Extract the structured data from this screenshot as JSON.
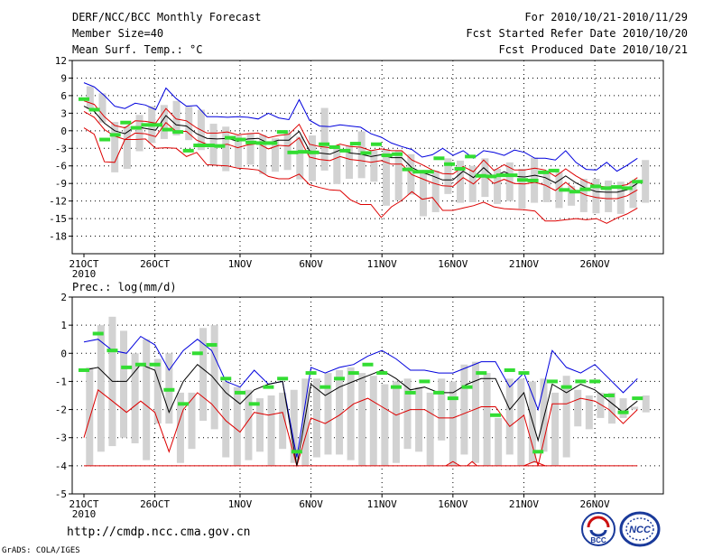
{
  "header": {
    "title": "DERF/NCC/BCC Monthly Forecast",
    "member_size": "Member Size=40",
    "variable": "Mean Surf. Temp.: °C",
    "forecast_period": "For 2010/10/21-2010/11/29",
    "started_refer": "Fcst Started Refer Date 2010/10/20",
    "produced": "Fcst Produced Date 2010/10/21"
  },
  "footer": {
    "url": "http://cmdp.ncc.cma.gov.cn",
    "credit": "GrADS: COLA/IGES"
  },
  "logos": {
    "bcc": "BCC",
    "ncc": "NCC"
  },
  "colors": {
    "box": "#d2d2d2",
    "green": "#33dd33",
    "upper": "#0000dd",
    "lower": "#dd0000",
    "mean": "#000000",
    "grid": "#000000"
  },
  "chart_data": [
    {
      "type": "line",
      "title": "Mean Surf. Temp.: °C",
      "x_tick_labels": [
        "21OCT",
        "26OCT",
        "1NOV",
        "6NOV",
        "11NOV",
        "16NOV",
        "21NOV",
        "26NOV"
      ],
      "x_tick_days": [
        1,
        6,
        12,
        17,
        22,
        27,
        32,
        37
      ],
      "x_year_label": "2010",
      "days": 40,
      "ylim": [
        -21,
        12
      ],
      "yticks": [
        12,
        9,
        6,
        3,
        0,
        -3,
        -6,
        -9,
        -12,
        -15,
        -18
      ],
      "grid": true,
      "series": [
        {
          "name": "upper",
          "values": [
            8.2,
            7.5,
            6.0,
            4.2,
            3.8,
            4.7,
            4.4,
            3.6,
            7.3,
            5.5,
            4.2,
            4.3,
            2.4,
            2.4,
            2.3,
            2.4,
            2.3,
            2.0,
            3.0,
            2.2,
            1.9,
            5.3,
            1.8,
            0.8,
            0.7,
            1.0,
            0.8,
            0.6,
            -0.5,
            -1.1,
            -2.1,
            -2.7,
            -3.2,
            -4.5,
            -4.1,
            -3.0,
            -4.2,
            -3.4,
            -4.7,
            -3.4,
            -3.7,
            -4.2,
            -3.3,
            -3.7,
            -4.7,
            -4.7,
            -5.0,
            -3.4,
            -5.4,
            -6.6,
            -6.7,
            -5.4,
            -6.9,
            -5.9,
            -4.7
          ]
        },
        {
          "name": "mean_high",
          "values": [
            5.1,
            4.5,
            2.4,
            0.9,
            0.5,
            1.7,
            1.6,
            1.3,
            3.8,
            2.0,
            1.7,
            0.5,
            -0.4,
            -0.4,
            -0.2,
            -0.7,
            -0.5,
            -0.4,
            -1.2,
            -0.8,
            -0.6,
            1.1,
            -2.3,
            -2.7,
            -2.9,
            -2.3,
            -2.7,
            -2.8,
            -3.4,
            -3.1,
            -3.4,
            -3.4,
            -5.0,
            -5.8,
            -6.7,
            -7.3,
            -7.4,
            -6.1,
            -7.0,
            -5.0,
            -6.8,
            -5.8,
            -6.7,
            -6.7,
            -6.4,
            -6.7,
            -7.8,
            -6.5,
            -7.7,
            -8.7,
            -9.4,
            -9.6,
            -9.5,
            -9.2,
            -8.0
          ]
        },
        {
          "name": "mean",
          "values": [
            4.2,
            3.3,
            1.3,
            0.0,
            -0.5,
            0.7,
            0.4,
            0.1,
            2.6,
            1.0,
            0.8,
            -0.5,
            -1.3,
            -1.4,
            -1.3,
            -1.8,
            -1.4,
            -1.3,
            -2.1,
            -1.6,
            -1.6,
            -0.1,
            -3.4,
            -3.8,
            -4.0,
            -3.3,
            -3.8,
            -4.0,
            -4.4,
            -4.1,
            -4.6,
            -4.6,
            -6.3,
            -7.1,
            -7.7,
            -8.4,
            -8.4,
            -6.9,
            -8.0,
            -6.3,
            -7.9,
            -7.0,
            -7.8,
            -7.9,
            -7.6,
            -8.0,
            -8.9,
            -7.7,
            -8.9,
            -9.8,
            -10.4,
            -10.5,
            -10.5,
            -10.1,
            -9.0
          ]
        },
        {
          "name": "mean_low",
          "values": [
            3.3,
            2.3,
            0.2,
            -0.9,
            -1.5,
            -0.4,
            -0.5,
            -1.0,
            1.4,
            -0.1,
            -0.1,
            -1.6,
            -2.3,
            -2.5,
            -2.3,
            -2.9,
            -2.4,
            -2.2,
            -3.1,
            -2.5,
            -2.6,
            -1.2,
            -4.5,
            -4.9,
            -5.1,
            -4.4,
            -4.9,
            -5.1,
            -5.4,
            -5.1,
            -5.7,
            -5.7,
            -7.5,
            -8.2,
            -8.9,
            -9.4,
            -9.5,
            -8.0,
            -9.1,
            -7.5,
            -9.0,
            -8.3,
            -9.0,
            -9.1,
            -8.8,
            -9.3,
            -10.2,
            -8.8,
            -10.2,
            -11.0,
            -11.4,
            -11.6,
            -11.6,
            -11.1,
            -10.1
          ]
        },
        {
          "name": "lower",
          "values": [
            0.5,
            -0.6,
            -5.3,
            -5.4,
            -1.5,
            -1.5,
            -1.4,
            -3.0,
            -2.9,
            -3.0,
            -4.4,
            -3.7,
            -5.8,
            -5.9,
            -6.0,
            -6.4,
            -6.5,
            -6.7,
            -7.8,
            -8.2,
            -8.2,
            -7.4,
            -9.2,
            -9.7,
            -10.1,
            -10.2,
            -11.8,
            -12.6,
            -12.6,
            -14.8,
            -13.0,
            -11.9,
            -10.4,
            -11.7,
            -11.4,
            -13.6,
            -13.6,
            -13.2,
            -12.8,
            -12.2,
            -13.0,
            -13.3,
            -13.4,
            -13.5,
            -13.7,
            -15.4,
            -15.4,
            -15.2,
            -15.0,
            -15.2,
            -15.0,
            -15.8,
            -14.9,
            -14.2,
            -13.2
          ]
        },
        {
          "name": "box_top",
          "values": [
            7.6,
            6.4,
            1.5,
            0.8,
            2.7,
            4.2,
            4.4,
            5.1,
            4.1,
            3.6,
            1.2,
            0.7,
            -0.8,
            -0.4,
            -0.7,
            -1.3,
            -0.1,
            -1.0,
            -0.8,
            3.9,
            -2.5,
            -2.5,
            -0.1,
            -3.4,
            -3.1,
            -3.4,
            -4.0,
            -6.7,
            -6.8,
            -4.7,
            -5.1,
            -6.0,
            -4.7,
            -6.5,
            -5.4,
            -6.5,
            -4.6,
            -6.9,
            -7.1,
            -9.4,
            -8.2,
            -8.2,
            -8.5,
            -8.7,
            -8.5,
            -5.0
          ]
        },
        {
          "name": "box_bottom",
          "values": [
            3.7,
            1.4,
            -7.1,
            -6.5,
            -3.5,
            -2.1,
            -1.4,
            -0.8,
            -1.6,
            -3.3,
            -5.8,
            -6.9,
            -6.3,
            -5.8,
            -7.4,
            -7.0,
            -6.7,
            -8.3,
            -8.6,
            -6.8,
            -9.1,
            -8.2,
            -8.1,
            -8.7,
            -12.8,
            -11.9,
            -10.9,
            -14.6,
            -13.9,
            -10.8,
            -12.3,
            -12.2,
            -11.3,
            -12.5,
            -12.0,
            -13.3,
            -12.3,
            -12.2,
            -13.2,
            -12.8,
            -13.9,
            -14.1,
            -13.9,
            -14.2,
            -13.2,
            -12.3
          ]
        },
        {
          "name": "green_marker",
          "values": [
            5.4,
            3.6,
            -1.5,
            -0.7,
            1.4,
            0.5,
            1.0,
            1.0,
            0.2,
            -0.2,
            -3.4,
            -2.5,
            -2.5,
            -2.6,
            -1.2,
            -1.5,
            -2.0,
            -2.1,
            -2.1,
            -0.2,
            -3.7,
            -3.6,
            -3.7,
            -2.3,
            -2.8,
            -3.4,
            -2.2,
            -3.8,
            -2.3,
            -4.2,
            -4.0,
            -6.6,
            -7.0,
            -7.0,
            -4.7,
            -5.7,
            -6.5,
            -4.4,
            -7.7,
            -7.8,
            -7.6,
            -7.6,
            -8.4,
            -8.5,
            -7.1,
            -6.8,
            -10.1,
            -10.4,
            -10.0,
            -9.5,
            -9.8,
            -9.6,
            -9.8,
            -8.7
          ]
        }
      ]
    },
    {
      "type": "line",
      "title": "Prec.: log(mm/d)",
      "x_tick_labels": [
        "21OCT",
        "26OCT",
        "1NOV",
        "6NOV",
        "11NOV",
        "16NOV",
        "21NOV",
        "26NOV"
      ],
      "x_tick_days": [
        1,
        6,
        12,
        17,
        22,
        27,
        32,
        37
      ],
      "x_year_label": "2010",
      "days": 40,
      "ylim": [
        -5,
        2
      ],
      "yticks": [
        2,
        1,
        0,
        -1,
        -2,
        -3,
        -4,
        -5
      ],
      "grid": true,
      "series": [
        {
          "name": "upper",
          "values": [
            0.4,
            0.5,
            0.1,
            0.0,
            0.6,
            0.3,
            -0.6,
            0.1,
            0.5,
            0.1,
            -1.0,
            -1.2,
            -0.6,
            -1.1,
            -1.0,
            -3.7,
            -0.5,
            -0.7,
            -0.5,
            -0.4,
            -0.1,
            0.1,
            -0.2,
            -0.6,
            -0.6,
            -0.7,
            -0.7,
            -0.5,
            -0.3,
            -0.3,
            -1.2,
            -0.7,
            -2.0,
            0.1,
            -0.5,
            -0.7,
            -0.4,
            -0.9,
            -1.4,
            -0.9
          ]
        },
        {
          "name": "mean",
          "values": [
            -0.6,
            -0.5,
            -1.0,
            -1.0,
            -0.4,
            -0.6,
            -2.1,
            -1.0,
            -0.4,
            -0.8,
            -1.4,
            -1.8,
            -1.3,
            -1.1,
            -1.0,
            -4.0,
            -1.1,
            -1.5,
            -1.2,
            -1.0,
            -0.8,
            -0.6,
            -0.9,
            -1.3,
            -1.2,
            -1.4,
            -1.4,
            -1.1,
            -0.9,
            -0.9,
            -2.0,
            -1.4,
            -3.1,
            -1.1,
            -1.4,
            -1.1,
            -1.3,
            -1.7,
            -2.1,
            -1.7
          ]
        },
        {
          "name": "lower",
          "values": [
            -3.0,
            -1.3,
            -1.7,
            -2.1,
            -1.7,
            -2.1,
            -3.5,
            -2.0,
            -1.4,
            -1.8,
            -2.4,
            -2.8,
            -2.1,
            -2.2,
            -2.1,
            -4.0,
            -2.3,
            -2.5,
            -2.2,
            -1.8,
            -1.6,
            -1.9,
            -2.2,
            -2.0,
            -2.0,
            -2.3,
            -2.3,
            -2.1,
            -1.9,
            -1.9,
            -2.6,
            -2.2,
            -4.0,
            -1.8,
            -1.8,
            -1.6,
            -1.7,
            -2.0,
            -2.5,
            -2.0
          ]
        },
        {
          "name": "box_top",
          "values": [
            -0.5,
            1.0,
            1.3,
            0.8,
            0.0,
            0.5,
            -0.2,
            0.0,
            -1.4,
            -1.4,
            0.9,
            1.0,
            -1.0,
            -1.2,
            -1.3,
            -1.6,
            -1.5,
            -1.4,
            -1.3,
            -0.9,
            -0.9,
            -0.7,
            -0.6,
            -0.5,
            -0.7,
            -0.8,
            -1.1,
            -1.0,
            -0.9,
            -1.2,
            -1.4,
            -0.9,
            -1.0,
            -0.4,
            -0.3,
            -0.7,
            -2.3,
            -0.9,
            -0.9,
            -1.0,
            -0.9,
            -1.4,
            -0.8,
            -1.3,
            -1.5,
            -1.4,
            -1.4,
            -1.6,
            -1.9,
            -1.5
          ]
        },
        {
          "name": "box_bottom",
          "values": [
            -4.0,
            -3.5,
            -3.3,
            -3.0,
            -3.2,
            -3.8,
            -2.5,
            -2.5,
            -3.9,
            -3.4,
            -2.4,
            -2.7,
            -3.7,
            -4.0,
            -3.8,
            -3.5,
            -4.0,
            -3.4,
            -3.9,
            -4.0,
            -3.7,
            -3.6,
            -3.6,
            -3.8,
            -4.0,
            -4.0,
            -4.0,
            -3.9,
            -3.4,
            -3.5,
            -4.0,
            -3.1,
            -4.0,
            -3.6,
            -3.9,
            -4.0,
            -4.0,
            -3.6,
            -4.0,
            -3.9,
            -3.5,
            -4.0,
            -3.7,
            -2.6,
            -2.7,
            -2.3,
            -2.5,
            -2.3,
            -2.0,
            -2.1
          ]
        },
        {
          "name": "green_marker",
          "values": [
            -0.6,
            0.7,
            0.1,
            -0.5,
            -0.4,
            -0.4,
            -1.3,
            -1.8,
            0.0,
            0.3,
            -0.9,
            -1.4,
            -1.8,
            -1.2,
            -0.9,
            -3.5,
            -0.7,
            -1.2,
            -0.9,
            -0.7,
            -0.4,
            -0.7,
            -1.2,
            -1.4,
            -1.0,
            -1.4,
            -1.6,
            -1.2,
            -0.7,
            -2.2,
            -0.6,
            -0.7,
            -3.5,
            -1.0,
            -1.2,
            -1.0,
            -1.0,
            -1.5,
            -2.1,
            -1.6
          ]
        }
      ],
      "zero_line_red_days": [
        [
          26.5,
          27.5
        ],
        [
          28.0,
          28.7
        ],
        [
          32.0,
          33.5
        ]
      ],
      "floor_value": -4.0
    }
  ]
}
